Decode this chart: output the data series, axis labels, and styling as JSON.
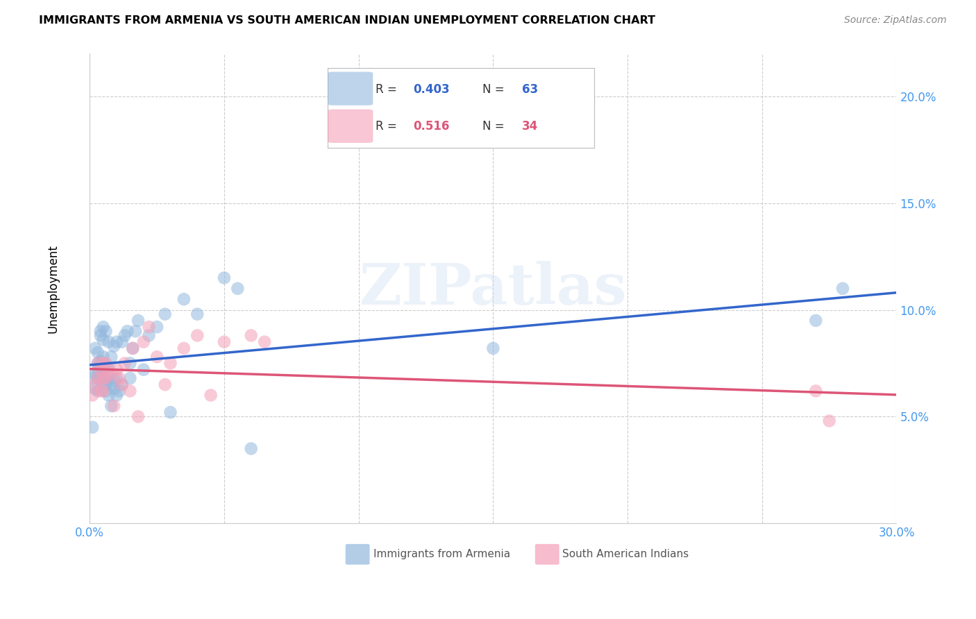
{
  "title": "IMMIGRANTS FROM ARMENIA VS SOUTH AMERICAN INDIAN UNEMPLOYMENT CORRELATION CHART",
  "source": "Source: ZipAtlas.com",
  "ylabel": "Unemployment",
  "xlim": [
    0.0,
    0.3
  ],
  "ylim": [
    0.0,
    0.22
  ],
  "xticks": [
    0.0,
    0.05,
    0.1,
    0.15,
    0.2,
    0.25,
    0.3
  ],
  "yticks": [
    0.0,
    0.05,
    0.1,
    0.15,
    0.2
  ],
  "xticklabels": [
    "0.0%",
    "",
    "",
    "",
    "",
    "",
    "30.0%"
  ],
  "yticklabels": [
    "",
    "5.0%",
    "10.0%",
    "15.0%",
    "20.0%"
  ],
  "blue_color": "#93b8de",
  "pink_color": "#f4a0b8",
  "blue_line_color": "#3366cc",
  "pink_line_color": "#dd5577",
  "blue_r": "0.403",
  "blue_n": "63",
  "pink_r": "0.516",
  "pink_n": "34",
  "blue_label": "Immigrants from Armenia",
  "pink_label": "South American Indians",
  "watermark": "ZIPatlas",
  "background_color": "#ffffff",
  "grid_color": "#cccccc",
  "blue_scatter_x": [
    0.001,
    0.001,
    0.002,
    0.002,
    0.002,
    0.003,
    0.003,
    0.003,
    0.003,
    0.003,
    0.004,
    0.004,
    0.004,
    0.004,
    0.004,
    0.004,
    0.005,
    0.005,
    0.005,
    0.005,
    0.005,
    0.005,
    0.006,
    0.006,
    0.006,
    0.006,
    0.006,
    0.007,
    0.007,
    0.007,
    0.007,
    0.008,
    0.008,
    0.008,
    0.009,
    0.009,
    0.009,
    0.01,
    0.01,
    0.01,
    0.011,
    0.012,
    0.012,
    0.013,
    0.014,
    0.015,
    0.015,
    0.016,
    0.017,
    0.018,
    0.02,
    0.022,
    0.025,
    0.028,
    0.03,
    0.035,
    0.04,
    0.05,
    0.055,
    0.06,
    0.15,
    0.27,
    0.28
  ],
  "blue_scatter_y": [
    0.045,
    0.068,
    0.063,
    0.07,
    0.082,
    0.068,
    0.072,
    0.075,
    0.062,
    0.08,
    0.072,
    0.074,
    0.068,
    0.076,
    0.09,
    0.088,
    0.068,
    0.072,
    0.065,
    0.078,
    0.086,
    0.092,
    0.062,
    0.065,
    0.068,
    0.074,
    0.09,
    0.06,
    0.068,
    0.073,
    0.085,
    0.055,
    0.065,
    0.078,
    0.063,
    0.067,
    0.083,
    0.06,
    0.068,
    0.085,
    0.062,
    0.065,
    0.085,
    0.088,
    0.09,
    0.068,
    0.075,
    0.082,
    0.09,
    0.095,
    0.072,
    0.088,
    0.092,
    0.098,
    0.052,
    0.105,
    0.098,
    0.115,
    0.11,
    0.035,
    0.082,
    0.095,
    0.11
  ],
  "pink_scatter_x": [
    0.001,
    0.002,
    0.003,
    0.003,
    0.004,
    0.004,
    0.005,
    0.005,
    0.005,
    0.006,
    0.006,
    0.007,
    0.008,
    0.009,
    0.01,
    0.011,
    0.012,
    0.013,
    0.015,
    0.016,
    0.018,
    0.02,
    0.022,
    0.025,
    0.028,
    0.03,
    0.035,
    0.04,
    0.045,
    0.05,
    0.06,
    0.065,
    0.27,
    0.275
  ],
  "pink_scatter_y": [
    0.06,
    0.065,
    0.068,
    0.075,
    0.062,
    0.072,
    0.062,
    0.068,
    0.075,
    0.068,
    0.075,
    0.072,
    0.07,
    0.055,
    0.072,
    0.068,
    0.065,
    0.075,
    0.062,
    0.082,
    0.05,
    0.085,
    0.092,
    0.078,
    0.065,
    0.075,
    0.082,
    0.088,
    0.06,
    0.085,
    0.088,
    0.085,
    0.062,
    0.048
  ]
}
